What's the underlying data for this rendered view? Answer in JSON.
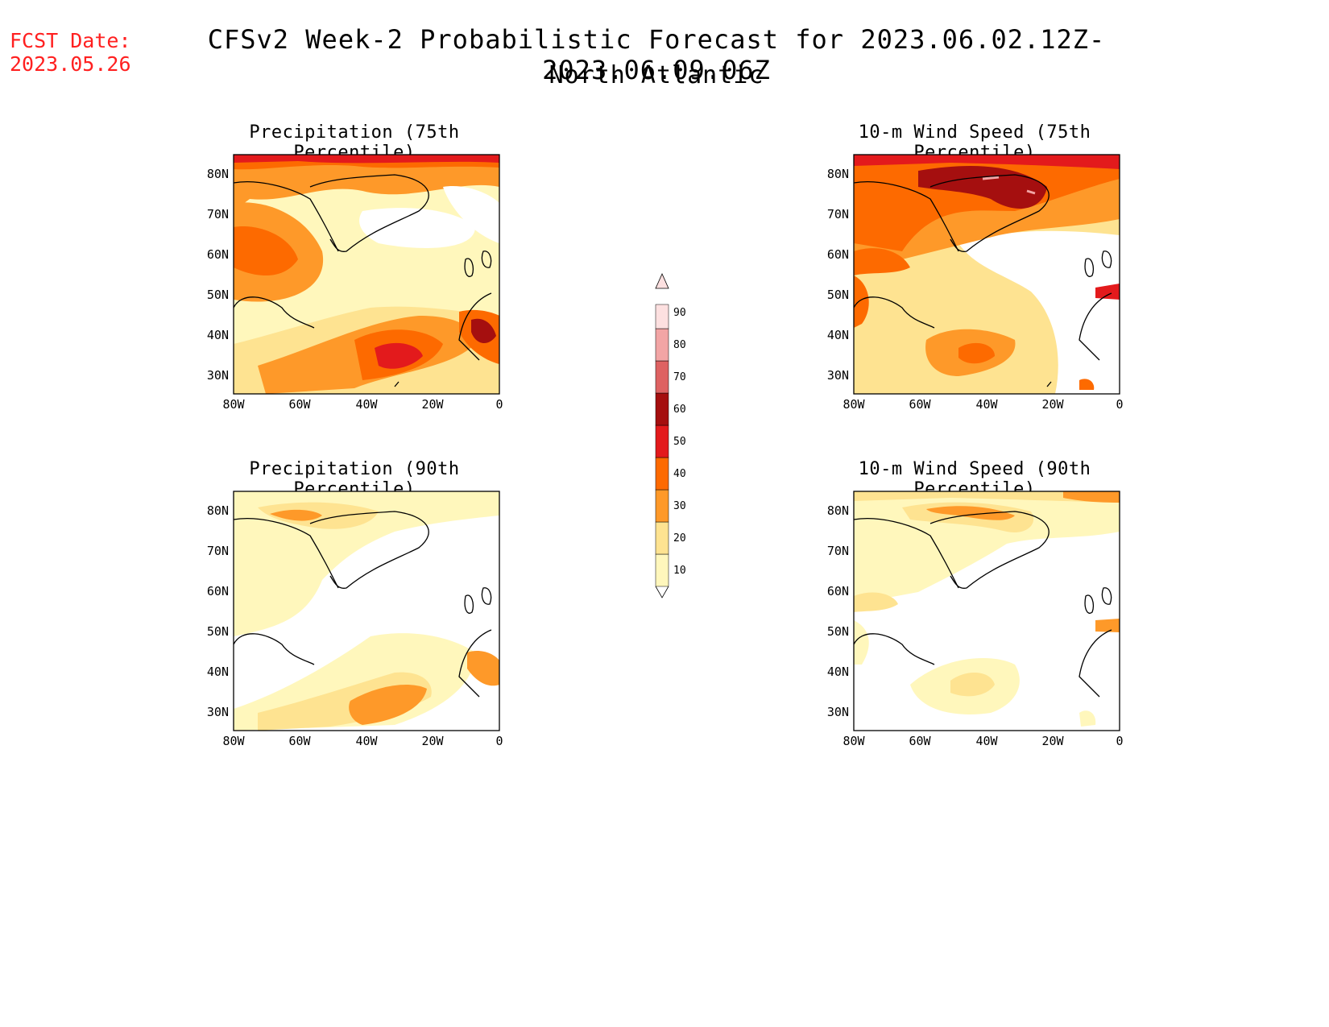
{
  "header": {
    "fcst_label": "FCST Date:",
    "fcst_date": "2023.05.26",
    "title": "CFSv2 Week-2 Probabilistic Forecast for 2023.06.02.12Z-2023.06.09.06Z",
    "region": "North Atlantic"
  },
  "axes": {
    "lat_ticks": [
      "80N",
      "70N",
      "60N",
      "50N",
      "40N",
      "30N"
    ],
    "lon_ticks": [
      "80W",
      "60W",
      "40W",
      "20W",
      "0"
    ]
  },
  "panels": [
    {
      "id": "precip75",
      "title": "Precipitation (75th Percentile)"
    },
    {
      "id": "wind75",
      "title": "10-m Wind Speed (75th Percentile)"
    },
    {
      "id": "precip90",
      "title": "Precipitation (90th Percentile)"
    },
    {
      "id": "wind90",
      "title": "10-m Wind Speed (90th Percentile)"
    }
  ],
  "colorbar": {
    "levels": [
      "10",
      "20",
      "30",
      "40",
      "50",
      "60",
      "70",
      "80",
      "90"
    ],
    "colors": [
      "#fff7bc",
      "#fee391",
      "#fe9929",
      "#fd6a00",
      "#e31a1c",
      "#a50f0f",
      "#de6262",
      "#f2a5a5",
      "#fde0e0"
    ]
  }
}
